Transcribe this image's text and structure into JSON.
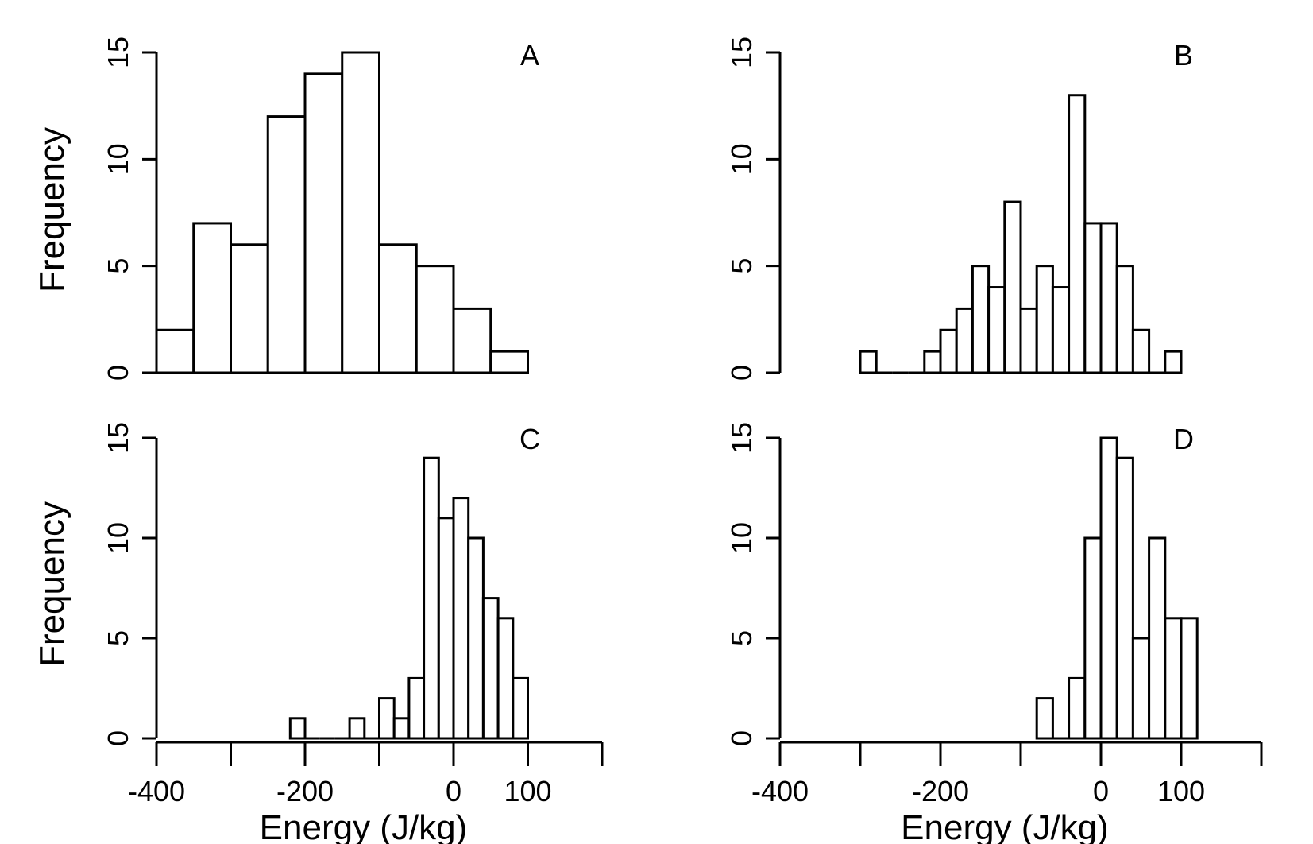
{
  "chart_data": [
    {
      "type": "bar",
      "panel_label": "A",
      "ylabel": "Frequency",
      "xlabel": "",
      "ylim": [
        0,
        15
      ],
      "yticks": [
        "0",
        "5",
        "10",
        "15"
      ],
      "xlim": [
        -400,
        200
      ],
      "xticks": [],
      "bins": [
        {
          "x0": -400,
          "x1": -350,
          "count": 2
        },
        {
          "x0": -350,
          "x1": -300,
          "count": 7
        },
        {
          "x0": -300,
          "x1": -250,
          "count": 6
        },
        {
          "x0": -250,
          "x1": -200,
          "count": 12
        },
        {
          "x0": -200,
          "x1": -150,
          "count": 14
        },
        {
          "x0": -150,
          "x1": -100,
          "count": 15
        },
        {
          "x0": -100,
          "x1": -50,
          "count": 6
        },
        {
          "x0": -50,
          "x1": 0,
          "count": 5
        },
        {
          "x0": 0,
          "x1": 50,
          "count": 3
        },
        {
          "x0": 50,
          "x1": 100,
          "count": 1
        }
      ]
    },
    {
      "type": "bar",
      "panel_label": "B",
      "ylabel": "",
      "xlabel": "",
      "ylim": [
        0,
        15
      ],
      "yticks": [
        "0",
        "5",
        "10",
        "15"
      ],
      "xlim": [
        -400,
        200
      ],
      "xticks": [],
      "bins": [
        {
          "x0": -300,
          "x1": -280,
          "count": 1
        },
        {
          "x0": -280,
          "x1": -260,
          "count": 0
        },
        {
          "x0": -260,
          "x1": -240,
          "count": 0
        },
        {
          "x0": -240,
          "x1": -220,
          "count": 0
        },
        {
          "x0": -220,
          "x1": -200,
          "count": 1
        },
        {
          "x0": -200,
          "x1": -180,
          "count": 2
        },
        {
          "x0": -180,
          "x1": -160,
          "count": 3
        },
        {
          "x0": -160,
          "x1": -140,
          "count": 5
        },
        {
          "x0": -140,
          "x1": -120,
          "count": 4
        },
        {
          "x0": -120,
          "x1": -100,
          "count": 8
        },
        {
          "x0": -100,
          "x1": -80,
          "count": 3
        },
        {
          "x0": -80,
          "x1": -60,
          "count": 5
        },
        {
          "x0": -60,
          "x1": -40,
          "count": 4
        },
        {
          "x0": -40,
          "x1": -20,
          "count": 13
        },
        {
          "x0": -20,
          "x1": 0,
          "count": 7
        },
        {
          "x0": 0,
          "x1": 20,
          "count": 7
        },
        {
          "x0": 20,
          "x1": 40,
          "count": 5
        },
        {
          "x0": 40,
          "x1": 60,
          "count": 2
        },
        {
          "x0": 60,
          "x1": 80,
          "count": 0
        },
        {
          "x0": 80,
          "x1": 100,
          "count": 1
        }
      ]
    },
    {
      "type": "bar",
      "panel_label": "C",
      "ylabel": "Frequency",
      "xlabel": "Energy (J/kg)",
      "ylim": [
        0,
        15
      ],
      "yticks": [
        "0",
        "5",
        "10",
        "15"
      ],
      "xlim": [
        -400,
        200
      ],
      "xticks": [
        -400,
        -300,
        -200,
        -100,
        0,
        100,
        200
      ],
      "xtick_labels": [
        "-400",
        "",
        "-200",
        "",
        "0",
        "100",
        ""
      ],
      "bins": [
        {
          "x0": -220,
          "x1": -200,
          "count": 1
        },
        {
          "x0": -200,
          "x1": -180,
          "count": 0
        },
        {
          "x0": -180,
          "x1": -160,
          "count": 0
        },
        {
          "x0": -160,
          "x1": -140,
          "count": 0
        },
        {
          "x0": -140,
          "x1": -120,
          "count": 1
        },
        {
          "x0": -120,
          "x1": -100,
          "count": 0
        },
        {
          "x0": -100,
          "x1": -80,
          "count": 2
        },
        {
          "x0": -80,
          "x1": -60,
          "count": 1
        },
        {
          "x0": -60,
          "x1": -40,
          "count": 3
        },
        {
          "x0": -40,
          "x1": -20,
          "count": 14
        },
        {
          "x0": -20,
          "x1": 0,
          "count": 11
        },
        {
          "x0": 0,
          "x1": 20,
          "count": 12
        },
        {
          "x0": 20,
          "x1": 40,
          "count": 10
        },
        {
          "x0": 40,
          "x1": 60,
          "count": 7
        },
        {
          "x0": 60,
          "x1": 80,
          "count": 6
        },
        {
          "x0": 80,
          "x1": 100,
          "count": 3
        }
      ]
    },
    {
      "type": "bar",
      "panel_label": "D",
      "ylabel": "",
      "xlabel": "Energy (J/kg)",
      "ylim": [
        0,
        15
      ],
      "yticks": [
        "0",
        "5",
        "10",
        "15"
      ],
      "xlim": [
        -400,
        200
      ],
      "xticks": [
        -400,
        -300,
        -200,
        -100,
        0,
        100,
        200
      ],
      "xtick_labels": [
        "-400",
        "",
        "-200",
        "",
        "0",
        "100",
        ""
      ],
      "bins": [
        {
          "x0": -80,
          "x1": -60,
          "count": 2
        },
        {
          "x0": -60,
          "x1": -40,
          "count": 0
        },
        {
          "x0": -40,
          "x1": -20,
          "count": 3
        },
        {
          "x0": -20,
          "x1": 0,
          "count": 10
        },
        {
          "x0": 0,
          "x1": 20,
          "count": 15
        },
        {
          "x0": 20,
          "x1": 40,
          "count": 14
        },
        {
          "x0": 40,
          "x1": 60,
          "count": 5
        },
        {
          "x0": 60,
          "x1": 80,
          "count": 10
        },
        {
          "x0": 80,
          "x1": 100,
          "count": 6
        },
        {
          "x0": 100,
          "x1": 120,
          "count": 6
        }
      ]
    }
  ]
}
